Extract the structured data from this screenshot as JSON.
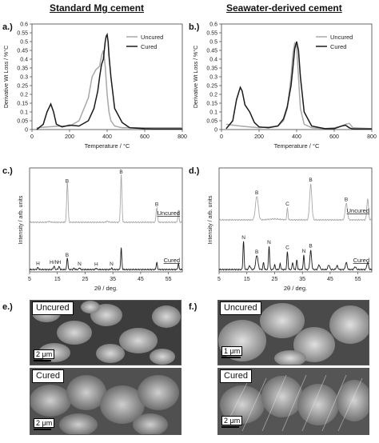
{
  "titles": {
    "left": "Standard Mg cement",
    "right": "Seawater-derived cement"
  },
  "panel_labels": {
    "a": "a.)",
    "b": "b.)",
    "c": "c.)",
    "d": "d.)",
    "e": "e.)",
    "f": "f.)"
  },
  "colors": {
    "uncured": "#a8a8a8",
    "cured": "#1a1a1a"
  },
  "chart_data": [
    {
      "id": "a",
      "type": "line",
      "xlabel": "Temperature / °C",
      "ylabel": "Derivative Wt Loss / %°C",
      "xlim": [
        0,
        800
      ],
      "ylim": [
        0,
        0.6
      ],
      "xticks": [
        0,
        200,
        400,
        600,
        800
      ],
      "yticks": [
        0,
        0.05,
        0.1,
        0.15,
        0.2,
        0.25,
        0.3,
        0.35,
        0.4,
        0.45,
        0.5,
        0.55,
        0.6
      ],
      "ytick_labels": [
        "0",
        "0.05",
        "0.1",
        "0.15",
        "0.2",
        "0.25",
        "0.3",
        "0.35",
        "0.4",
        "0.45",
        "0.5",
        "0.55",
        "0.6"
      ],
      "legend": [
        "Uncured",
        "Cured"
      ],
      "legend_position": "top-right",
      "series": [
        {
          "name": "Uncured",
          "color": "#a8a8a8",
          "x": [
            25,
            80,
            150,
            200,
            250,
            300,
            320,
            340,
            360,
            370,
            380,
            390,
            400,
            410,
            420,
            440,
            480,
            600,
            650,
            700,
            800
          ],
          "y": [
            0.01,
            0.015,
            0.02,
            0.02,
            0.05,
            0.18,
            0.3,
            0.34,
            0.36,
            0.42,
            0.45,
            0.36,
            0.2,
            0.1,
            0.05,
            0.02,
            0.01,
            0.01,
            0.01,
            0.01,
            0.01
          ]
        },
        {
          "name": "Cured",
          "color": "#1a1a1a",
          "x": [
            25,
            60,
            80,
            100,
            115,
            130,
            160,
            200,
            250,
            300,
            330,
            350,
            360,
            370,
            380,
            390,
            395,
            400,
            405,
            410,
            420,
            440,
            480,
            520,
            600,
            650,
            700,
            800
          ],
          "y": [
            0.0,
            0.03,
            0.1,
            0.145,
            0.1,
            0.03,
            0.015,
            0.025,
            0.02,
            0.05,
            0.12,
            0.22,
            0.3,
            0.37,
            0.4,
            0.5,
            0.53,
            0.54,
            0.5,
            0.42,
            0.3,
            0.12,
            0.04,
            0.01,
            0.005,
            0.003,
            0.003,
            0.003
          ]
        }
      ]
    },
    {
      "id": "b",
      "type": "line",
      "xlabel": "Temperature / °C",
      "ylabel": "Derivative Wt Loss / %°C",
      "xlim": [
        0,
        800
      ],
      "ylim": [
        0,
        0.6
      ],
      "xticks": [
        0,
        200,
        400,
        600,
        800
      ],
      "yticks": [
        0,
        0.05,
        0.1,
        0.15,
        0.2,
        0.25,
        0.3,
        0.35,
        0.4,
        0.45,
        0.5,
        0.55,
        0.6
      ],
      "ytick_labels": [
        "0",
        "0.05",
        "0.1",
        "0.15",
        "0.2",
        "0.25",
        "0.3",
        "0.35",
        "0.4",
        "0.45",
        "0.5",
        "0.55",
        "0.6"
      ],
      "legend": [
        "Uncured",
        "Cured"
      ],
      "legend_position": "top-right",
      "series": [
        {
          "name": "Uncured",
          "color": "#a8a8a8",
          "x": [
            25,
            60,
            100,
            150,
            200,
            250,
            300,
            330,
            350,
            370,
            380,
            390,
            400,
            410,
            420,
            440,
            480,
            550,
            600,
            640,
            660,
            680,
            700,
            800
          ],
          "y": [
            0.03,
            0.025,
            0.02,
            0.015,
            0.01,
            0.015,
            0.02,
            0.05,
            0.12,
            0.3,
            0.43,
            0.49,
            0.47,
            0.3,
            0.12,
            0.03,
            0.01,
            0.005,
            0.01,
            0.02,
            0.03,
            0.035,
            0.01,
            0.005
          ]
        },
        {
          "name": "Cured",
          "color": "#1a1a1a",
          "x": [
            25,
            60,
            80,
            100,
            110,
            125,
            150,
            175,
            200,
            250,
            300,
            330,
            350,
            370,
            380,
            390,
            400,
            410,
            420,
            440,
            480,
            550,
            600,
            640,
            660,
            680,
            700,
            800
          ],
          "y": [
            0.005,
            0.05,
            0.17,
            0.24,
            0.22,
            0.14,
            0.1,
            0.04,
            0.015,
            0.01,
            0.02,
            0.06,
            0.13,
            0.25,
            0.35,
            0.46,
            0.5,
            0.45,
            0.3,
            0.1,
            0.02,
            0.005,
            0.005,
            0.02,
            0.025,
            0.01,
            0.003,
            0.003
          ]
        }
      ]
    },
    {
      "id": "c",
      "type": "line",
      "xlabel": "2θ / deg.",
      "ylabel": "Intensity / arb. units",
      "xlim": [
        5,
        60
      ],
      "xticks": [
        5,
        15,
        25,
        35,
        45,
        55
      ],
      "series_labels": [
        "Uncured",
        "Cured"
      ],
      "peak_labels": [
        {
          "label": "B",
          "series": "Uncured",
          "x": 18.5
        },
        {
          "label": "B",
          "series": "Uncured",
          "x": 38.0
        },
        {
          "label": "B",
          "series": "Uncured",
          "x": 50.8
        },
        {
          "label": "H",
          "series": "Cured",
          "x": 8.0
        },
        {
          "label": "H/N",
          "series": "Cured",
          "x": 13.8
        },
        {
          "label": "H",
          "series": "Cured",
          "x": 15.6
        },
        {
          "label": "B",
          "series": "Cured",
          "x": 18.5
        },
        {
          "label": "N",
          "series": "Cured",
          "x": 23.0
        },
        {
          "label": "H",
          "series": "Cured",
          "x": 29.0
        },
        {
          "label": "N",
          "series": "Cured",
          "x": 34.5
        }
      ],
      "series": [
        {
          "name": "Uncured",
          "color": "#a8a8a8",
          "offset": 1.0,
          "peaks": [
            [
              18.6,
              0.85,
              0.25
            ],
            [
              38.0,
              1.0,
              0.25
            ],
            [
              50.8,
              0.3,
              0.25
            ],
            [
              58.6,
              0.25,
              0.2
            ],
            [
              33.0,
              0.02,
              0.4
            ],
            [
              12.0,
              0.015,
              0.5
            ]
          ]
        },
        {
          "name": "Cured",
          "color": "#1a1a1a",
          "offset": 0.0,
          "peaks": [
            [
              8.0,
              0.04,
              0.25
            ],
            [
              13.8,
              0.07,
              0.25
            ],
            [
              15.6,
              0.06,
              0.25
            ],
            [
              18.6,
              0.25,
              0.2
            ],
            [
              21.0,
              0.03,
              0.2
            ],
            [
              23.0,
              0.04,
              0.2
            ],
            [
              29.0,
              0.03,
              0.2
            ],
            [
              34.5,
              0.03,
              0.2
            ],
            [
              38.0,
              0.45,
              0.2
            ],
            [
              50.8,
              0.15,
              0.2
            ],
            [
              58.6,
              0.12,
              0.2
            ]
          ]
        }
      ]
    },
    {
      "id": "d",
      "type": "line",
      "xlabel": "2θ / deg.",
      "ylabel": "Intensity / arb. units",
      "xlim": [
        5,
        60
      ],
      "xticks": [
        5,
        15,
        25,
        35,
        45,
        55
      ],
      "series_labels": [
        "Uncured",
        "Cured"
      ],
      "peak_labels": [
        {
          "label": "B",
          "series": "Uncured",
          "x": 18.6
        },
        {
          "label": "C",
          "series": "Uncured",
          "x": 29.6
        },
        {
          "label": "B",
          "series": "Uncured",
          "x": 38.0
        },
        {
          "label": "B",
          "series": "Uncured",
          "x": 50.8
        },
        {
          "label": "N",
          "series": "Cured",
          "x": 13.8
        },
        {
          "label": "B",
          "series": "Cured",
          "x": 18.6
        },
        {
          "label": "N",
          "series": "Cured",
          "x": 23.0
        },
        {
          "label": "C",
          "series": "Cured",
          "x": 29.6
        },
        {
          "label": "N",
          "series": "Cured",
          "x": 35.5
        },
        {
          "label": "B",
          "series": "Cured",
          "x": 38.0
        }
      ],
      "series": [
        {
          "name": "Uncured",
          "color": "#a8a8a8",
          "offset": 1.05,
          "peaks": [
            [
              18.6,
              0.5,
              0.5
            ],
            [
              29.6,
              0.25,
              0.2
            ],
            [
              38.0,
              0.75,
              0.4
            ],
            [
              50.8,
              0.35,
              0.4
            ],
            [
              58.5,
              0.45,
              0.3
            ],
            [
              25.0,
              0.02,
              2.0
            ]
          ]
        },
        {
          "name": "Cured",
          "color": "#1a1a1a",
          "offset": 0.0,
          "peaks": [
            [
              13.8,
              0.6,
              0.2
            ],
            [
              16.0,
              0.08,
              0.3
            ],
            [
              18.6,
              0.3,
              0.4
            ],
            [
              21.0,
              0.15,
              0.2
            ],
            [
              23.0,
              0.5,
              0.2
            ],
            [
              25.0,
              0.1,
              0.2
            ],
            [
              27.0,
              0.12,
              0.2
            ],
            [
              29.6,
              0.38,
              0.2
            ],
            [
              31.5,
              0.15,
              0.2
            ],
            [
              33.0,
              0.2,
              0.2
            ],
            [
              35.5,
              0.3,
              0.2
            ],
            [
              38.0,
              0.4,
              0.3
            ],
            [
              41.0,
              0.1,
              0.3
            ],
            [
              44.5,
              0.1,
              0.3
            ],
            [
              47.5,
              0.08,
              0.3
            ],
            [
              50.8,
              0.15,
              0.3
            ],
            [
              54.0,
              0.06,
              0.3
            ],
            [
              58.5,
              0.15,
              0.3
            ]
          ]
        }
      ]
    }
  ],
  "sem": {
    "e_top": {
      "tag": "Uncured",
      "scale": "2 μm"
    },
    "e_bottom": {
      "tag": "Cured",
      "scale": "2 μm"
    },
    "f_top": {
      "tag": "Uncured",
      "scale": "1 μm"
    },
    "f_bottom": {
      "tag": "Cured",
      "scale": "2 μm"
    }
  }
}
